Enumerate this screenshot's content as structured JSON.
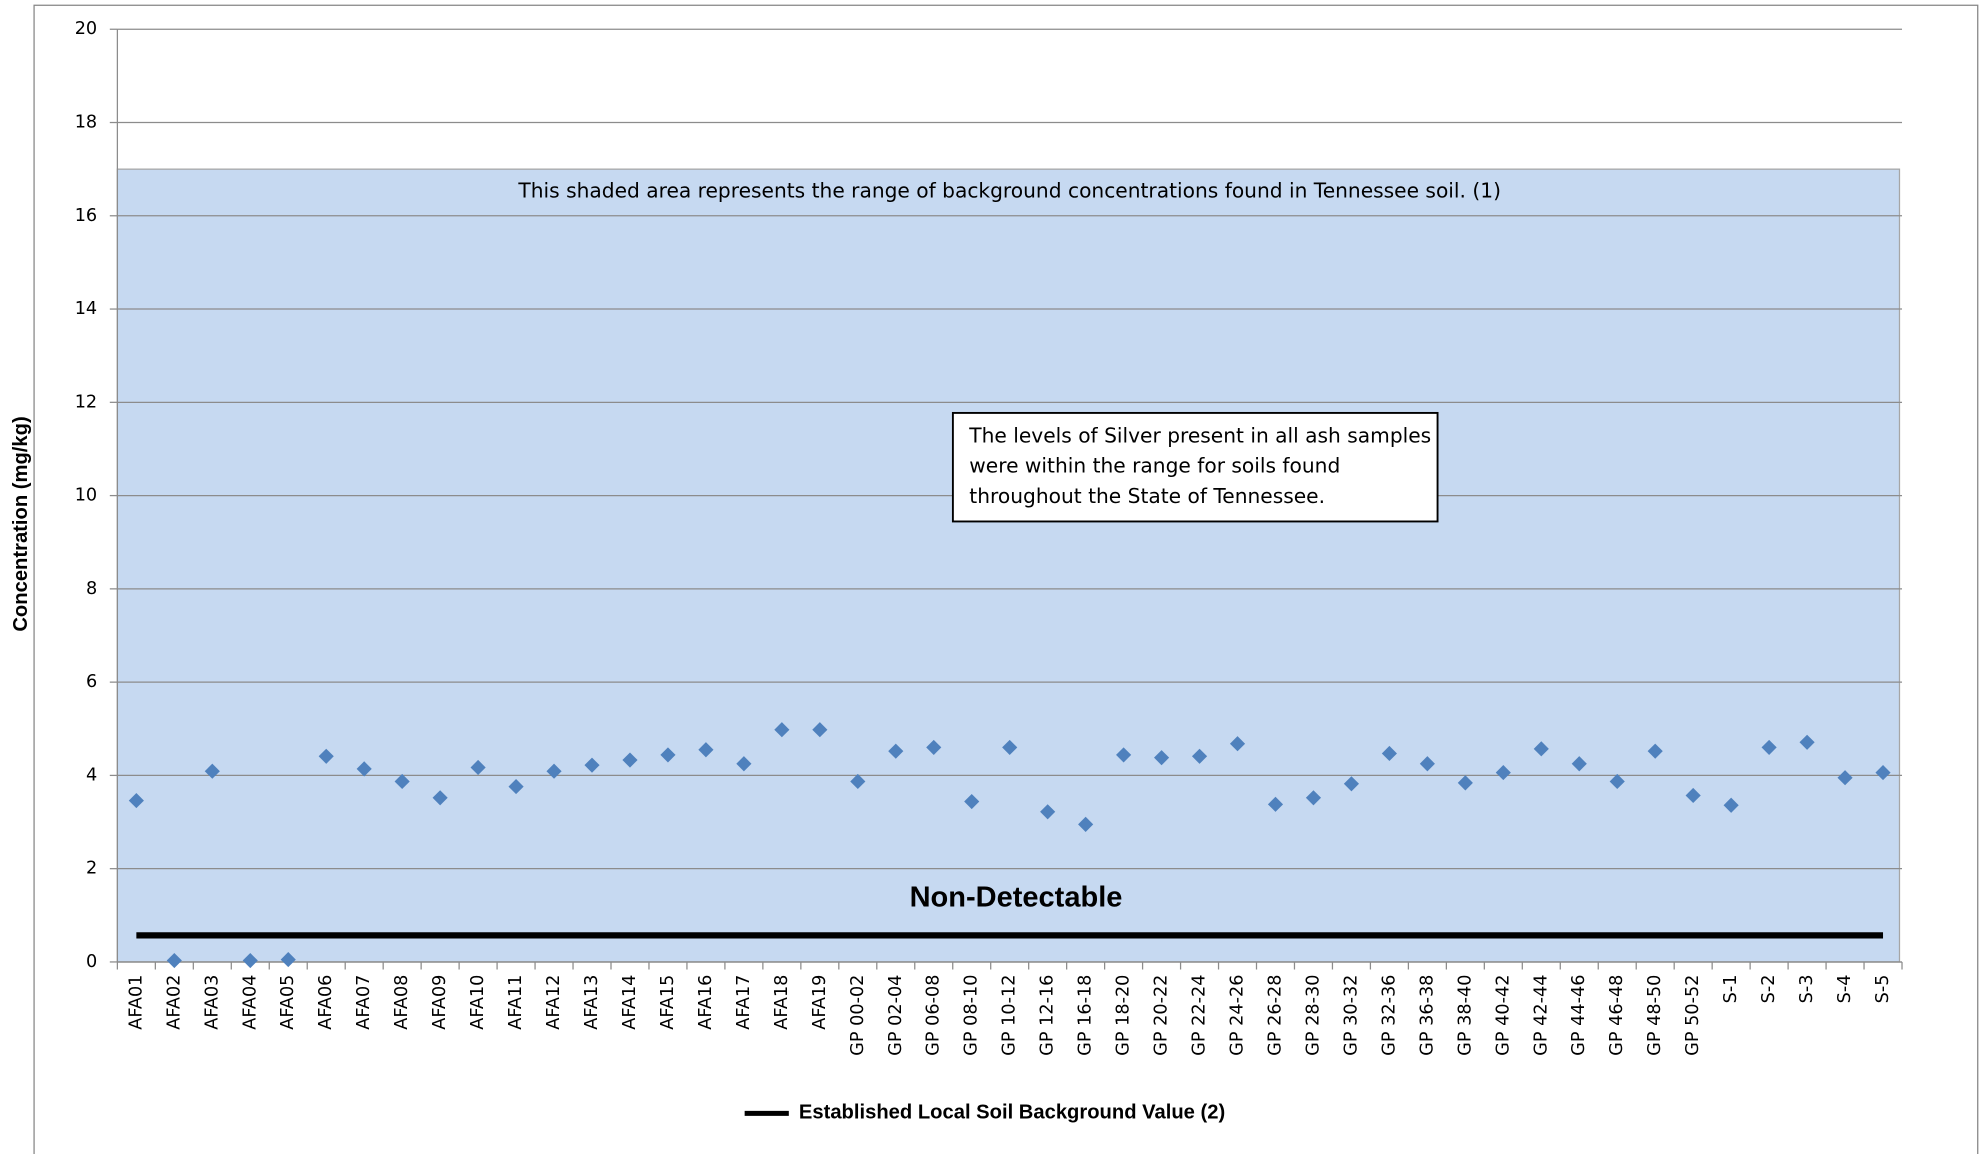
{
  "chart_data": {
    "type": "scatter",
    "ylabel": "Concentration (mg/kg)",
    "categories": [
      "AFA01",
      "AFA02",
      "AFA03",
      "AFA04",
      "AFA05",
      "AFA06",
      "AFA07",
      "AFA08",
      "AFA09",
      "AFA10",
      "AFA11",
      "AFA12",
      "AFA13",
      "AFA14",
      "AFA15",
      "AFA16",
      "AFA17",
      "AFA18",
      "AFA19",
      "GP 00-02",
      "GP 02-04",
      "GP 06-08",
      "GP 08-10",
      "GP 10-12",
      "GP 12-16",
      "GP 16-18",
      "GP 18-20",
      "GP 20-22",
      "GP 22-24",
      "GP 24-26",
      "GP 26-28",
      "GP 28-30",
      "GP 30-32",
      "GP 32-36",
      "GP 36-38",
      "GP 38-40",
      "GP 40-42",
      "GP 42-44",
      "GP 44-46",
      "GP 46-48",
      "GP 48-50",
      "GP 50-52",
      "S-1",
      "S-2",
      "S-3",
      "S-4",
      "S-5"
    ],
    "values": [
      3.46,
      0.03,
      4.09,
      0.03,
      0.05,
      4.41,
      4.14,
      3.87,
      3.52,
      4.17,
      3.76,
      4.09,
      4.22,
      4.33,
      4.44,
      4.55,
      4.25,
      4.98,
      4.98,
      3.87,
      4.52,
      4.6,
      3.44,
      4.6,
      3.22,
      2.95,
      4.44,
      4.38,
      4.41,
      4.68,
      3.38,
      3.52,
      3.82,
      4.47,
      4.25,
      3.84,
      4.06,
      4.57,
      4.25,
      3.87,
      4.52,
      3.57,
      3.36,
      4.6,
      4.71,
      3.95,
      4.06
    ],
    "color": "#4f81bd",
    "ylim": [
      0,
      20
    ],
    "yticks": [
      0,
      2,
      4,
      6,
      8,
      10,
      12,
      14,
      16,
      18,
      20
    ],
    "grid": true,
    "shaded_range": {
      "values": [
        0,
        17
      ],
      "color": "#c6d9f1",
      "note": "This shaded area represents the range of background concentrations found in Tennessee soil. (1)"
    },
    "reference_line": {
      "name": "Established Local Soil Background Value (2)",
      "value": 0.57,
      "color": "#000000",
      "label": "Non-Detectable"
    },
    "annotation": [
      "The levels of Silver present in all ash samples",
      "were within the range for soils found",
      "throughout the State of Tennessee."
    ]
  }
}
